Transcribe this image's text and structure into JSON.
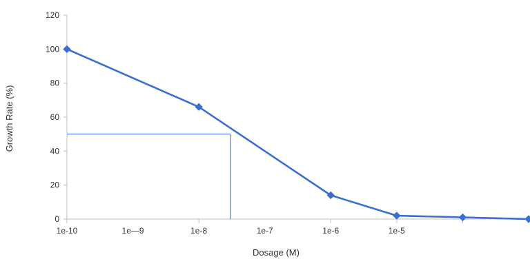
{
  "chart_data": {
    "type": "line",
    "xlabel": "Dosage (M)",
    "ylabel": "Growth Rate (%)",
    "x_scale": "log",
    "xlim": [
      1e-10,
      0.001
    ],
    "ylim": [
      0,
      120
    ],
    "y_ticks": [
      "0",
      "20",
      "40",
      "60",
      "80",
      "100",
      "120"
    ],
    "x_tick_labels": [
      {
        "x": 1e-10,
        "label": "1e-10"
      },
      {
        "x": 1e-09,
        "label": "1e—9"
      },
      {
        "x": 1e-08,
        "label": "1e-8"
      },
      {
        "x": 1e-07,
        "label": "1e-7"
      },
      {
        "x": 1e-06,
        "label": "1e-6"
      },
      {
        "x": 1e-05,
        "label": "1e-5"
      }
    ],
    "x_major_ticks": [
      1e-10,
      1e-08,
      1e-06,
      1e-05,
      0.0001,
      0.001
    ],
    "grid": false,
    "series": [
      {
        "color": "#3a6fcf",
        "points": [
          {
            "x": 1e-10,
            "y": 100
          },
          {
            "x": 1e-08,
            "y": 66
          },
          {
            "x": 1e-06,
            "y": 14
          },
          {
            "x": 1e-05,
            "y": 2
          },
          {
            "x": 0.0001,
            "y": 1
          },
          {
            "x": 0.001,
            "y": 0
          }
        ]
      }
    ],
    "reference": {
      "x": 3e-08,
      "y": 50,
      "color": "#4a7fd6"
    }
  }
}
